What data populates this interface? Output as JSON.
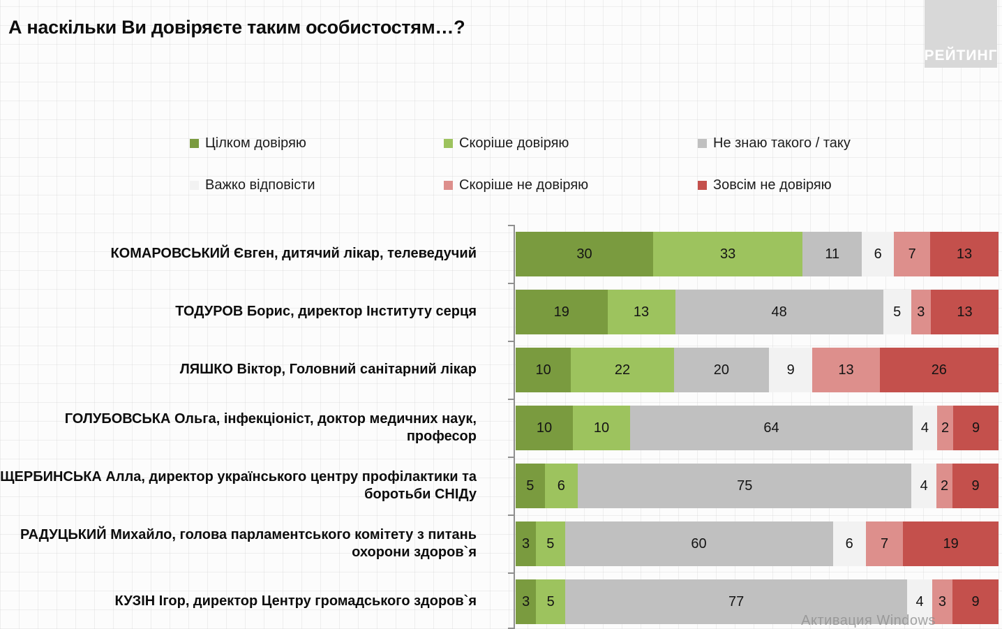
{
  "page": {
    "logo_text": "РЕЙТИНГ",
    "watermark": "Активация Windows"
  },
  "chart_data": {
    "type": "bar",
    "stacked": true,
    "orientation": "horizontal",
    "title": "А наскільки Ви довіряєте таким особистостям…?",
    "xlabel": "",
    "ylabel": "",
    "xlim": [
      0,
      100
    ],
    "units": "percent",
    "grid": "faint background grid",
    "legend_position": "top",
    "categories": [
      "КОМАРОВСЬКИЙ Євген, дитячий лікар, телеведучий",
      "ТОДУРОВ Борис, директор Інституту серця",
      "ЛЯШКО Віктор, Головний санітарний лікар",
      "ГОЛУБОВСЬКА Ольга, інфекціоніст, доктор медичних наук, професор",
      "ЩЕРБИНСЬКА Алла, директор українського центру профілактики та боротьби СНІДу",
      "РАДУЦЬКИЙ Михайло, голова парламентського комітету з питань охорони здоров`я",
      "КУЗІН Ігор, директор Центру громадського здоров`я"
    ],
    "series": [
      {
        "name": "Цілком довіряю",
        "color": "#7a9b3f",
        "values": [
          30,
          19,
          10,
          10,
          5,
          3,
          3
        ]
      },
      {
        "name": "Скоріше довіряю",
        "color": "#9dc35e",
        "values": [
          33,
          13,
          22,
          10,
          6,
          5,
          5
        ]
      },
      {
        "name": "Не знаю такого / таку",
        "color": "#c0c0c0",
        "values": [
          11,
          48,
          20,
          64,
          75,
          60,
          77
        ]
      },
      {
        "name": "Важко відповісти",
        "color": "#f2f2f2",
        "values": [
          6,
          5,
          9,
          4,
          4,
          6,
          4
        ]
      },
      {
        "name": "Скоріше не довіряю",
        "color": "#dd8f8c",
        "values": [
          7,
          3,
          13,
          2,
          2,
          7,
          3
        ]
      },
      {
        "name": "Зовсім не довіряю",
        "color": "#c4504c",
        "values": [
          13,
          13,
          26,
          9,
          9,
          19,
          9
        ]
      }
    ]
  }
}
